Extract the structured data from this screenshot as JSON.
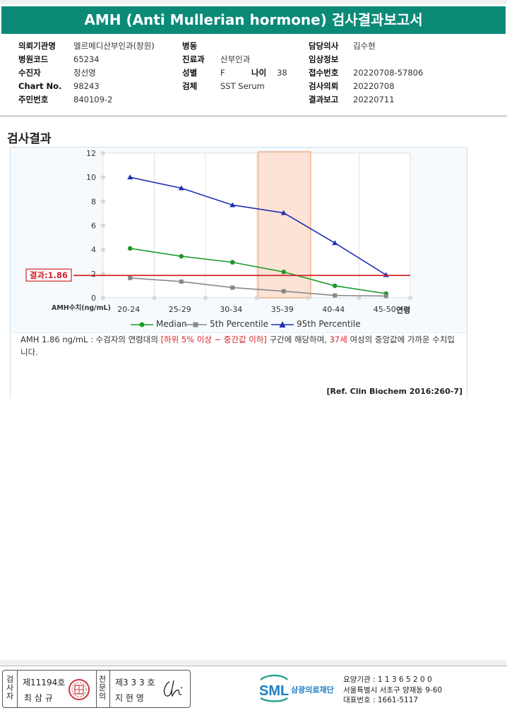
{
  "title": "AMH (Anti Mullerian hormone) 검사결과보고서",
  "info": {
    "col1": [
      {
        "label": "의뢰기관명",
        "value": "엘르메디산부인과(창원)"
      },
      {
        "label": "병원코드",
        "value": "65234"
      },
      {
        "label": "수진자",
        "value": "정선영"
      },
      {
        "label": "Chart No.",
        "value": "98243"
      },
      {
        "label": "주민번호",
        "value": "840109-2"
      }
    ],
    "col2": [
      {
        "label": "병동",
        "value": ""
      },
      {
        "label": "진료과",
        "value": "산부인과"
      },
      {
        "label": "성별",
        "value": "F"
      },
      {
        "label": "검체",
        "value": "SST Serum"
      }
    ],
    "age_label": "나이",
    "age_value": "38",
    "col3": [
      {
        "label": "담당의사",
        "value": "김수현"
      },
      {
        "label": "임상정보",
        "value": ""
      },
      {
        "label": "접수번호",
        "value": "20220708-57806"
      },
      {
        "label": "검사의뢰",
        "value": "20220708"
      },
      {
        "label": "결과보고",
        "value": "20220711"
      }
    ]
  },
  "section_title": "검사결과",
  "chart_data": {
    "type": "line",
    "categories": [
      "20-24",
      "25-29",
      "30-34",
      "35-39",
      "40-44",
      "45-50"
    ],
    "ylim": [
      0,
      12
    ],
    "yticks": [
      "0",
      "2",
      "4",
      "6",
      "8",
      "10",
      "12"
    ],
    "ylabel": "AMH수치(ng/mL)",
    "xlabel": "연령",
    "highlight_category": "35-39",
    "result_line": {
      "value": 1.86,
      "label": "결과:1.86"
    },
    "series": [
      {
        "name": "Median",
        "color": "#1e9a2a",
        "marker": "circle",
        "values": [
          4.1,
          3.45,
          2.95,
          2.15,
          1.0,
          0.35
        ]
      },
      {
        "name": "5th Percentile",
        "color": "#888888",
        "marker": "square",
        "values": [
          1.65,
          1.35,
          0.85,
          0.55,
          0.2,
          0.15
        ]
      },
      {
        "name": "95th Percentile",
        "color": "#1f2fb0",
        "marker": "triangle",
        "values": [
          10.0,
          9.1,
          7.7,
          7.05,
          4.55,
          1.9
        ]
      }
    ]
  },
  "description": {
    "part1": "AMH  1.86 ng/mL : 수검자의 연령대의 ",
    "part2": "[하위 5% 이상 ~ 중간값 이하]",
    "part3": "  구간에 해당하며, ",
    "part4": "37세",
    "part5": " 여성의 중앙값에 가까운 수치입니다."
  },
  "reference": "[Ref. Clin Biochem 2016:260-7]",
  "footer": {
    "inspector_label": "검사자",
    "inspector_no": "제11194호",
    "inspector_name": "최 삼 규",
    "specialist_label": "전문의",
    "specialist_no": "제3 3 3 호",
    "specialist_name": "지 현 영",
    "org_logo": "SML",
    "org_name": "삼광의료재단",
    "org_lines": [
      "요양기관 : 1 1 3 6 5 2 0 0",
      "서울특별시 서초구 양재동 9-60",
      "대표번호 : 1661-5117"
    ]
  }
}
